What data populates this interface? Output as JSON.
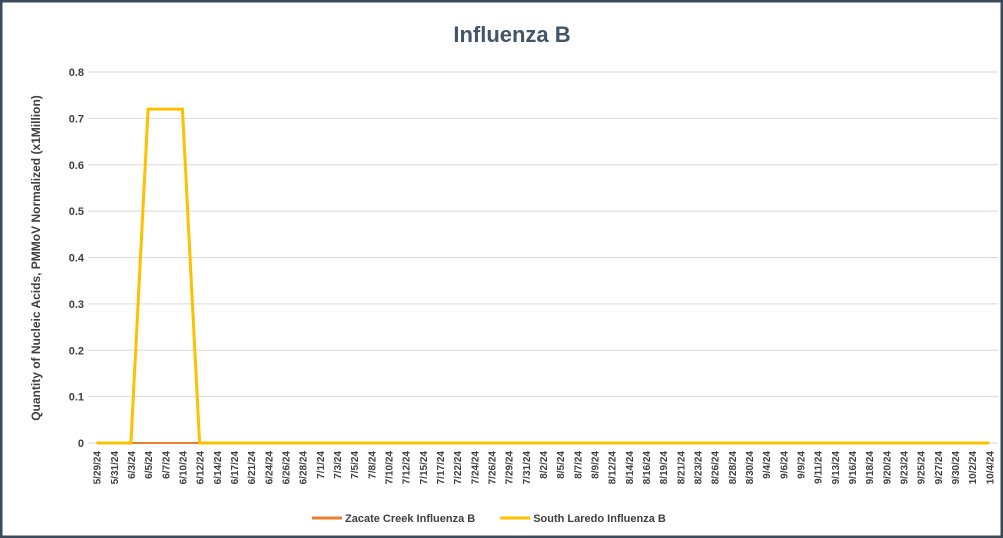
{
  "chart_data": {
    "type": "line",
    "title": "Influenza B",
    "y_label": "Quantity of Nucleic Acids, PMMoV Normalized (x1Million)",
    "categories": [
      "5/29/24",
      "5/31/24",
      "6/3/24",
      "6/5/24",
      "6/7/24",
      "6/10/24",
      "6/12/24",
      "6/14/24",
      "6/17/24",
      "6/21/24",
      "6/24/24",
      "6/26/24",
      "6/28/24",
      "7/1/24",
      "7/3/24",
      "7/5/24",
      "7/8/24",
      "7/10/24",
      "7/12/24",
      "7/15/24",
      "7/17/24",
      "7/22/24",
      "7/24/24",
      "7/26/24",
      "7/29/24",
      "7/31/24",
      "8/2/24",
      "8/5/24",
      "8/7/24",
      "8/9/24",
      "8/12/24",
      "8/14/24",
      "8/16/24",
      "8/19/24",
      "8/21/24",
      "8/23/24",
      "8/26/24",
      "8/28/24",
      "8/30/24",
      "9/4/24",
      "9/6/24",
      "9/9/24",
      "9/11/24",
      "9/13/24",
      "9/16/24",
      "9/18/24",
      "9/20/24",
      "9/23/24",
      "9/25/24",
      "9/27/24",
      "9/30/24",
      "10/2/24",
      "10/4/24"
    ],
    "series": [
      {
        "name": "Zacate Creek Influenza B",
        "color": "#ed7d31",
        "values": [
          0,
          0,
          0,
          0,
          0,
          0,
          0,
          0,
          0,
          0,
          0,
          0,
          0,
          0,
          0,
          0,
          0,
          0,
          0,
          0,
          0,
          0,
          0,
          0,
          0,
          0,
          0,
          0,
          0,
          0,
          0,
          0,
          0,
          0,
          0,
          0,
          0,
          0,
          0,
          0,
          0,
          0,
          0,
          0,
          0,
          0,
          0,
          0,
          0,
          0,
          0,
          0,
          0
        ]
      },
      {
        "name": "South Laredo Influenza B",
        "color": "#ffc000",
        "values": [
          0,
          0,
          0,
          0.72,
          0.72,
          0.72,
          0,
          0,
          0,
          0,
          0,
          0,
          0,
          0,
          0,
          0,
          0,
          0,
          0,
          0,
          0,
          0,
          0,
          0,
          0,
          0,
          0,
          0,
          0,
          0,
          0,
          0,
          0,
          0,
          0,
          0,
          0,
          0,
          0,
          0,
          0,
          0,
          0,
          0,
          0,
          0,
          0,
          0,
          0,
          0,
          0,
          0,
          0
        ]
      }
    ],
    "ylim": [
      0,
      0.8
    ],
    "yticks": [
      0,
      0.1,
      0.2,
      0.3,
      0.4,
      0.5,
      0.6,
      0.7,
      0.8
    ],
    "grid": true,
    "legend": "bottom"
  }
}
